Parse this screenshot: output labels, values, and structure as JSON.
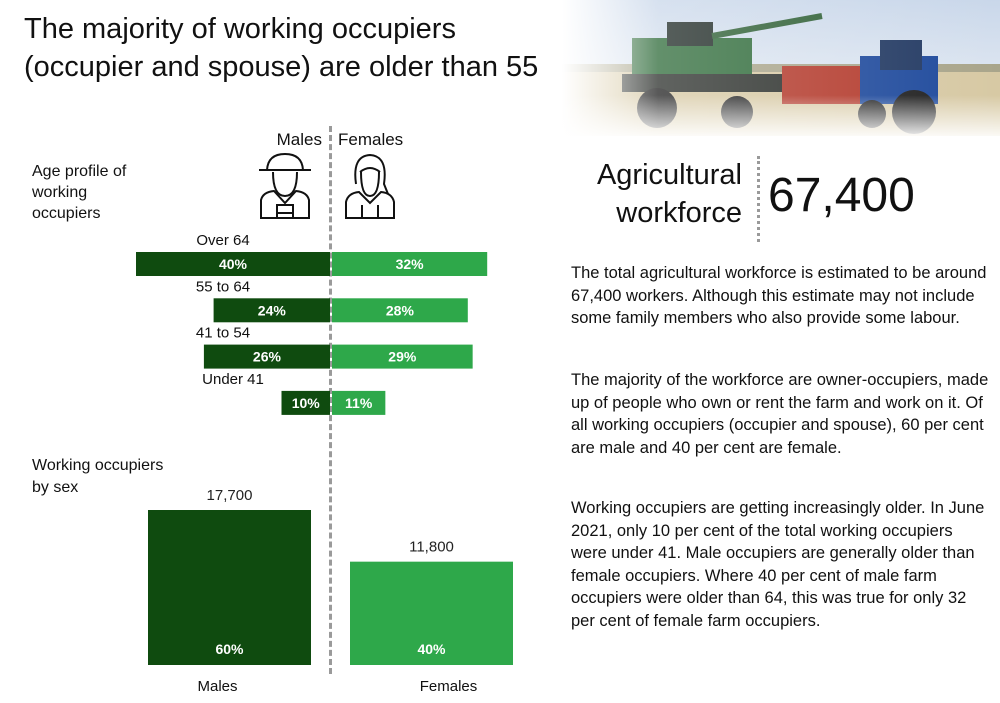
{
  "title": "The majority of working occupiers (occupier and spouse) are older than 55",
  "kpi": {
    "label_line1": "Agricultural",
    "label_line2": "workforce",
    "value": "67,400"
  },
  "paragraphs": [
    "The total agricultural workforce is estimated to be around 67,400 workers. Although this estimate may not include some family members who also provide some labour.",
    "The majority of the workforce are owner-occupiers, made up of people who own or rent the farm and work on it. Of all working occupiers (occupier and spouse), 60 per cent are male and 40 per cent are female.",
    "Working occupiers are getting increasingly older. In June 2021, only 10 per cent of the total working occupiers were under 41. Male occupiers are generally older than female occupiers. Where 40 per cent of male farm occupiers were older than 64, this was true for only 32 per cent of female farm occupiers."
  ],
  "icons": {
    "male": "male-farmer-icon",
    "female": "female-farmer-icon",
    "photo": "combine-harvester-tractor-photo"
  },
  "colors": {
    "males": "#0f4b0f",
    "females": "#2ea84a",
    "divider": "#9a9a9a"
  },
  "chart_data": [
    {
      "type": "bar",
      "orientation": "horizontal-diverging",
      "subtitle": "Age profile of working occupiers",
      "legend": [
        "Males",
        "Females"
      ],
      "categories": [
        "Over 64",
        "55 to 64",
        "41 to 54",
        "Under 41"
      ],
      "series": [
        {
          "name": "Males",
          "values": [
            40,
            24,
            26,
            10
          ],
          "labels": [
            "40%",
            "24%",
            "26%",
            "10%"
          ]
        },
        {
          "name": "Females",
          "values": [
            32,
            28,
            29,
            11
          ],
          "labels": [
            "32%",
            "28%",
            "29%",
            "11%"
          ]
        }
      ]
    },
    {
      "type": "bar",
      "subtitle": "Working occupiers by sex",
      "categories": [
        "Males",
        "Females"
      ],
      "values": [
        17700,
        11800
      ],
      "value_labels": [
        "17,700",
        "11,800"
      ],
      "share_labels": [
        "60%",
        "40%"
      ]
    }
  ]
}
